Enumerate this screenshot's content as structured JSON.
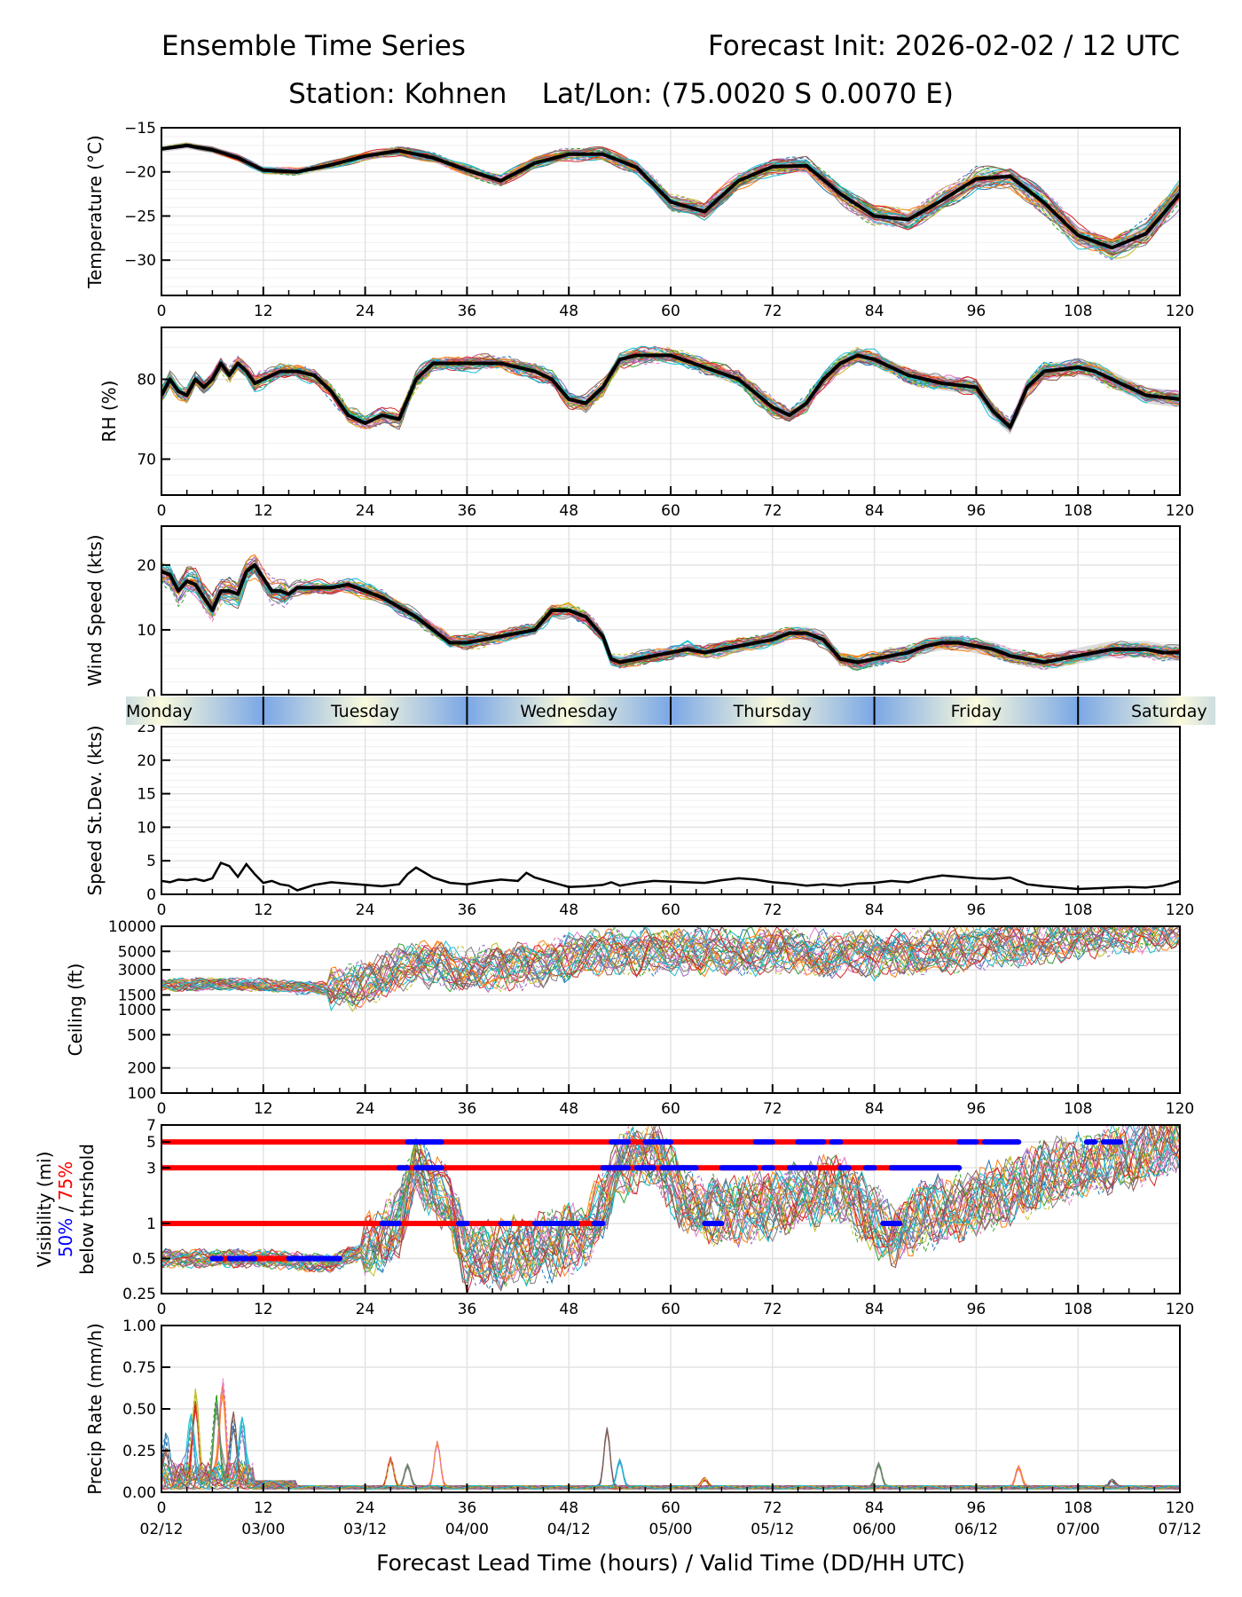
{
  "header": {
    "left_title": "Ensemble Time Series",
    "right_title": "Forecast Init: 2026-02-02 / 12 UTC",
    "subtitle": "Station: Kohnen    Lat/Lon: (75.0020 S 0.0070 E)"
  },
  "colors": {
    "mean_line": "#000000",
    "spread_band": "#d3d3d3",
    "threshold_50": "#0000ff",
    "threshold_75": "#ff0000",
    "day_band_edge": "#7aa7e6",
    "day_band_center": "#fafadc",
    "member_palette": [
      "#1f77b4",
      "#ff7f0e",
      "#2ca02c",
      "#d62728",
      "#9467bd",
      "#8c564b",
      "#e377c2",
      "#7f7f7f",
      "#bcbd22",
      "#17becf"
    ]
  },
  "day_band": {
    "days": [
      "Monday",
      "Tuesday",
      "Wednesday",
      "Thursday",
      "Friday",
      "Saturday"
    ],
    "day_start_hours": [
      -12,
      12,
      36,
      60,
      84,
      108
    ]
  },
  "chart_data": [
    {
      "id": "temperature",
      "type": "line",
      "ylabel": "Temperature (°C)",
      "xlim": [
        0,
        120
      ],
      "ylim": [
        -34,
        -15
      ],
      "yticks": [
        -15,
        -20,
        -25,
        -30
      ],
      "yticklabels": [
        "−15",
        "−20",
        "−25",
        "−30"
      ],
      "xticks": [
        0,
        12,
        24,
        36,
        48,
        60,
        72,
        84,
        96,
        108,
        120
      ],
      "grid": true,
      "members": 30,
      "mean": {
        "x": [
          0,
          3,
          6,
          9,
          12,
          16,
          20,
          24,
          28,
          32,
          36,
          40,
          44,
          48,
          52,
          56,
          60,
          64,
          68,
          72,
          76,
          80,
          84,
          88,
          92,
          96,
          100,
          104,
          108,
          112,
          116,
          120
        ],
        "y": [
          -17.4,
          -17.0,
          -17.5,
          -18.4,
          -19.8,
          -20.0,
          -19.2,
          -18.2,
          -17.6,
          -18.4,
          -19.8,
          -21.0,
          -19.0,
          -18.0,
          -18.0,
          -19.5,
          -23.4,
          -24.5,
          -21.0,
          -19.4,
          -19.3,
          -22.5,
          -25.0,
          -25.4,
          -23.2,
          -20.8,
          -20.5,
          -23.5,
          -27.2,
          -28.6,
          -27.0,
          -22.5
        ]
      },
      "spread": [
        1.2,
        3.0
      ]
    },
    {
      "id": "rh",
      "type": "line",
      "ylabel": "RH (%)",
      "xlim": [
        0,
        120
      ],
      "ylim": [
        65.5,
        86.5
      ],
      "yticks": [
        70,
        80
      ],
      "yticklabels": [
        "70",
        "80"
      ],
      "xticks": [
        0,
        12,
        24,
        36,
        48,
        60,
        72,
        84,
        96,
        108,
        120
      ],
      "grid": true,
      "members": 30,
      "mean": {
        "x": [
          0,
          1,
          2,
          3,
          4,
          5,
          6,
          7,
          8,
          9,
          10,
          11,
          12,
          14,
          16,
          18,
          20,
          22,
          24,
          26,
          28,
          30,
          32,
          34,
          36,
          40,
          44,
          46,
          48,
          50,
          52,
          54,
          56,
          60,
          64,
          68,
          72,
          74,
          76,
          78,
          80,
          82,
          84,
          88,
          92,
          96,
          98,
          100,
          102,
          104,
          108,
          110,
          112,
          116,
          120
        ],
        "y": [
          78,
          80,
          78.5,
          78,
          80,
          79,
          80,
          82,
          80.5,
          82,
          81,
          79.5,
          80,
          81,
          81,
          80.5,
          78.5,
          75.5,
          74.5,
          75.5,
          75,
          80,
          82,
          82,
          82,
          82,
          81,
          80,
          77.5,
          77,
          79,
          82.5,
          83,
          83,
          81.5,
          80,
          76.5,
          75.5,
          77,
          80,
          82,
          83,
          82.5,
          80.5,
          79.5,
          79,
          76,
          74,
          79,
          81,
          81.5,
          81,
          80,
          78,
          77.5
        ]
      },
      "spread": [
        0.8,
        2.5
      ]
    },
    {
      "id": "wind_speed",
      "type": "line",
      "ylabel": "Wind Speed (kts)",
      "xlim": [
        0,
        120
      ],
      "ylim": [
        0,
        26
      ],
      "yticks": [
        0,
        10,
        20
      ],
      "yticklabels": [
        "0",
        "10",
        "20"
      ],
      "xticks": [
        0,
        12,
        24,
        36,
        48,
        60,
        72,
        84,
        96,
        108,
        120
      ],
      "grid": true,
      "members": 30,
      "mean": {
        "x": [
          0,
          1,
          2,
          3,
          4,
          5,
          6,
          7,
          8,
          9,
          10,
          11,
          12,
          13,
          14,
          15,
          16,
          18,
          20,
          22,
          24,
          26,
          28,
          30,
          32,
          34,
          36,
          38,
          40,
          42,
          44,
          46,
          48,
          50,
          52,
          53,
          54,
          56,
          58,
          60,
          62,
          64,
          66,
          68,
          70,
          72,
          74,
          76,
          78,
          80,
          82,
          84,
          86,
          88,
          90,
          92,
          94,
          96,
          98,
          100,
          102,
          104,
          106,
          108,
          110,
          112,
          114,
          116,
          118,
          120
        ],
        "y": [
          19,
          18.5,
          16,
          17.5,
          17,
          15,
          13,
          16,
          16,
          15.5,
          19,
          20,
          18,
          16,
          16,
          15.5,
          16.5,
          16.5,
          16.5,
          17,
          16,
          15,
          13.5,
          12,
          10,
          8,
          8,
          8.5,
          9,
          9.5,
          10,
          13,
          13,
          12,
          9,
          5.5,
          5,
          5.5,
          6,
          6.5,
          7,
          6.5,
          7,
          7.5,
          8,
          8.5,
          9.5,
          9.5,
          8.5,
          5.5,
          5,
          5.5,
          6,
          6.5,
          7.5,
          8,
          8,
          7.5,
          7,
          6,
          5.5,
          5,
          5.5,
          6,
          6.5,
          7,
          7,
          7,
          6.5,
          6.5
        ]
      },
      "spread": [
        1.5,
        3.0
      ]
    },
    {
      "id": "speed_stdev",
      "type": "line",
      "ylabel": "Speed St.Dev. (kts)",
      "xlim": [
        0,
        120
      ],
      "ylim": [
        0,
        25
      ],
      "yticks": [
        0,
        5,
        10,
        15,
        20,
        25
      ],
      "yticklabels": [
        "0",
        "5",
        "10",
        "15",
        "20",
        "25"
      ],
      "xticks": [
        0,
        12,
        24,
        36,
        48,
        60,
        72,
        84,
        96,
        108,
        120
      ],
      "grid": true,
      "series": {
        "x": [
          0,
          1,
          2,
          3,
          4,
          5,
          6,
          7,
          8,
          9,
          10,
          11,
          12,
          13,
          14,
          15,
          16,
          18,
          20,
          22,
          24,
          26,
          28,
          29,
          30,
          32,
          34,
          36,
          38,
          40,
          42,
          43,
          44,
          46,
          48,
          50,
          52,
          53,
          54,
          56,
          58,
          60,
          62,
          64,
          66,
          68,
          70,
          72,
          74,
          76,
          78,
          80,
          82,
          84,
          86,
          88,
          90,
          92,
          94,
          96,
          98,
          100,
          102,
          104,
          106,
          108,
          110,
          112,
          114,
          116,
          118,
          120
        ],
        "y": [
          2,
          1.8,
          2.2,
          2.1,
          2.3,
          2,
          2.4,
          4.7,
          4.2,
          2.6,
          4.5,
          3,
          1.7,
          2,
          1.5,
          1.3,
          0.6,
          1.4,
          1.8,
          1.6,
          1.4,
          1.2,
          1.5,
          3,
          4,
          2.5,
          1.7,
          1.5,
          1.9,
          2.2,
          2.0,
          3.2,
          2.5,
          1.8,
          1.1,
          1.2,
          1.4,
          1.8,
          1.3,
          1.7,
          2.0,
          1.9,
          1.8,
          1.7,
          2.1,
          2.4,
          2.2,
          1.8,
          1.6,
          1.3,
          1.5,
          1.3,
          1.6,
          1.7,
          2.0,
          1.8,
          2.4,
          2.8,
          2.6,
          2.4,
          2.3,
          2.5,
          1.5,
          1.2,
          1.0,
          0.8,
          0.9,
          1.0,
          1.1,
          1.0,
          1.3,
          2.0
        ]
      }
    },
    {
      "id": "ceiling",
      "type": "line",
      "ylabel": "Ceiling (ft)",
      "yscale": "log",
      "xlim": [
        0,
        120
      ],
      "ylim": [
        100,
        10000
      ],
      "yticks": [
        100,
        200,
        500,
        1000,
        1500,
        3000,
        5000,
        10000
      ],
      "yticklabels": [
        "100",
        "200",
        "500",
        "1000",
        "1500",
        "3000",
        "5000",
        "10000"
      ],
      "xticks": [
        0,
        12,
        24,
        36,
        48,
        60,
        72,
        84,
        96,
        108,
        120
      ],
      "grid": true,
      "members": 30,
      "typical": {
        "x": [
          0,
          12,
          16,
          20,
          24,
          28,
          32,
          36,
          44,
          52,
          60,
          72,
          84,
          96,
          108,
          120
        ],
        "y": [
          2000,
          2000,
          1800,
          1800,
          2000,
          3200,
          3500,
          3000,
          3500,
          5000,
          5000,
          5000,
          4500,
          5500,
          7500,
          10000
        ]
      }
    },
    {
      "id": "visibility",
      "type": "line",
      "ylabel": "Visibility (mi)",
      "ylabel_line2_50": "50%",
      "ylabel_line2_sep": " / ",
      "ylabel_line2_75": "75%",
      "ylabel_line3": "below thrshold",
      "yscale": "log",
      "xlim": [
        0,
        120
      ],
      "ylim": [
        0.25,
        7
      ],
      "yticks": [
        0.25,
        0.5,
        1,
        3,
        5,
        7
      ],
      "yticklabels": [
        "0.25",
        "0.5",
        "1",
        "3",
        "5",
        "7"
      ],
      "xticks": [
        0,
        12,
        24,
        36,
        48,
        60,
        72,
        84,
        96,
        108,
        120
      ],
      "grid": true,
      "members": 30,
      "thresholds": [
        {
          "level": 5,
          "red": [
            [
              0,
              101
            ]
          ],
          "blue": [
            [
              29,
              33
            ],
            [
              53,
              55
            ],
            [
              57,
              60
            ],
            [
              70,
              72
            ],
            [
              75,
              78
            ],
            [
              79,
              80
            ],
            [
              94,
              96
            ],
            [
              97,
              101
            ],
            [
              109,
              110
            ],
            [
              111,
              113
            ]
          ]
        },
        {
          "level": 3,
          "red": [
            [
              0,
              94
            ]
          ],
          "blue": [
            [
              28,
              29
            ],
            [
              30,
              33
            ],
            [
              52,
              55
            ],
            [
              56,
              58
            ],
            [
              59,
              63
            ],
            [
              66,
              70
            ],
            [
              71,
              72
            ],
            [
              74,
              77
            ],
            [
              80,
              81
            ],
            [
              83,
              84
            ],
            [
              86,
              94
            ]
          ]
        },
        {
          "level": 1,
          "red": [
            [
              0,
              52
            ]
          ],
          "blue": [
            [
              26,
              28
            ],
            [
              35,
              36
            ],
            [
              40,
              41
            ],
            [
              44,
              49
            ],
            [
              51,
              52
            ],
            [
              64,
              66
            ],
            [
              85,
              87
            ]
          ]
        },
        {
          "level": 0.5,
          "red": [
            [
              6,
              21
            ]
          ],
          "blue": [
            [
              6,
              7
            ],
            [
              8,
              10
            ],
            [
              10.5,
              11
            ],
            [
              15,
              21
            ]
          ]
        }
      ]
    },
    {
      "id": "precip",
      "type": "line",
      "ylabel": "Precip Rate (mm/h)",
      "xlim": [
        0,
        120
      ],
      "ylim": [
        0,
        1
      ],
      "yticks": [
        0,
        0.25,
        0.5,
        0.75,
        1.0
      ],
      "yticklabels": [
        "0.00",
        "0.25",
        "0.50",
        "0.75",
        "1.00"
      ],
      "xticks": [
        0,
        12,
        24,
        36,
        48,
        60,
        72,
        84,
        96,
        108,
        120
      ],
      "xticklabels_hours": [
        "0",
        "12",
        "24",
        "36",
        "48",
        "60",
        "72",
        "84",
        "96",
        "108",
        "120"
      ],
      "xticklabels_valid": [
        "02/12",
        "03/00",
        "03/12",
        "04/00",
        "04/12",
        "05/00",
        "05/12",
        "06/00",
        "06/12",
        "07/00",
        "07/12"
      ],
      "xlabel": "Forecast Lead Time (hours) / Valid Time (DD/HH UTC)",
      "grid": true,
      "members": 30,
      "peaks": [
        {
          "x": 0.5,
          "y": 0.2
        },
        {
          "x": 3.5,
          "y": 0.32
        },
        {
          "x": 4,
          "y": 0.47
        },
        {
          "x": 6.5,
          "y": 0.45
        },
        {
          "x": 7.2,
          "y": 0.57
        },
        {
          "x": 8.5,
          "y": 0.36
        },
        {
          "x": 9.5,
          "y": 0.32
        },
        {
          "x": 27,
          "y": 0.17
        },
        {
          "x": 29,
          "y": 0.13
        },
        {
          "x": 32.5,
          "y": 0.27
        },
        {
          "x": 52.5,
          "y": 0.35
        },
        {
          "x": 54,
          "y": 0.16
        },
        {
          "x": 64,
          "y": 0.05
        },
        {
          "x": 84.5,
          "y": 0.14
        },
        {
          "x": 101,
          "y": 0.12
        },
        {
          "x": 112,
          "y": 0.04
        }
      ]
    }
  ]
}
